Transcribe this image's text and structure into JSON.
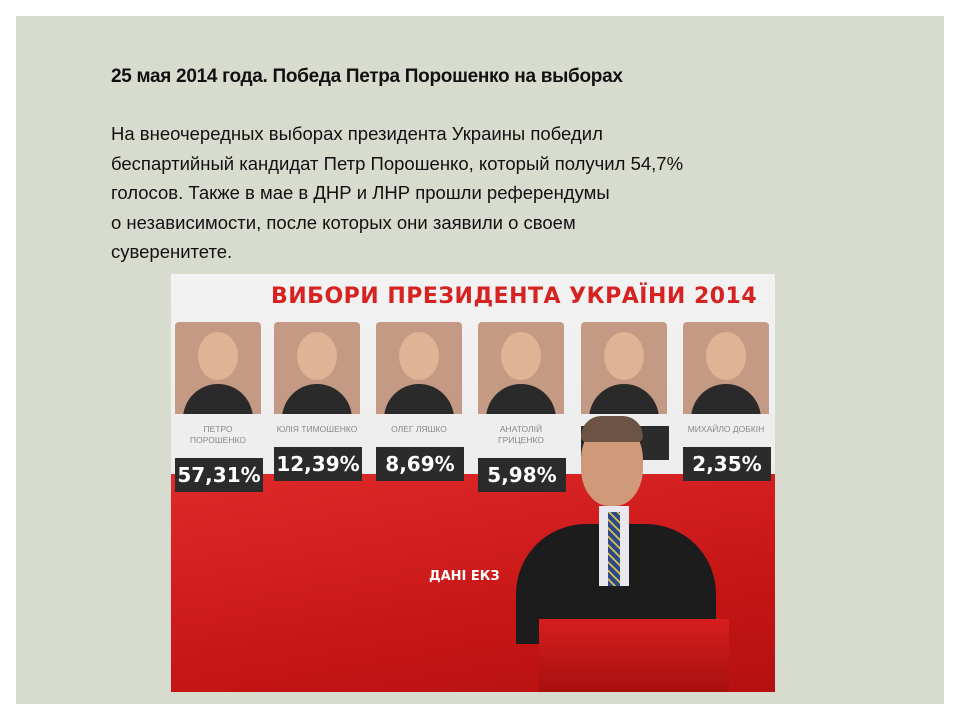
{
  "slide": {
    "title": "25 мая 2014 года. Победа Петра Порошенко на выборах",
    "body": "На внеочередных выборах президента Украины победил\nбеспартийный кандидат Петр Порошенко, который получил 54,7%\nголосов. Также в мае в ДНР и ЛНР прошли референдумы\nо независимости, после которых они заявили о своем\nсуверенитете."
  },
  "photo": {
    "board_title": "ВИБОРИ ПРЕЗИДЕНТА УКРАЇНИ 2014",
    "candidates": [
      {
        "name": "ПЕТРО ПОРОШЕНКО",
        "percent": "57,31%"
      },
      {
        "name": "ЮЛІЯ ТИМОШЕНКО",
        "percent": "12,39%"
      },
      {
        "name": "ОЛЕГ ЛЯШКО",
        "percent": "8,69%"
      },
      {
        "name": "АНАТОЛІЙ ГРИЦЕНКО",
        "percent": "5,98%"
      },
      {
        "name": "",
        "percent": "%"
      },
      {
        "name": "МИХАЙЛО ДОБКІН",
        "percent": "2,35%"
      }
    ],
    "sub_label": "ДАНІ ЕКЗ"
  }
}
